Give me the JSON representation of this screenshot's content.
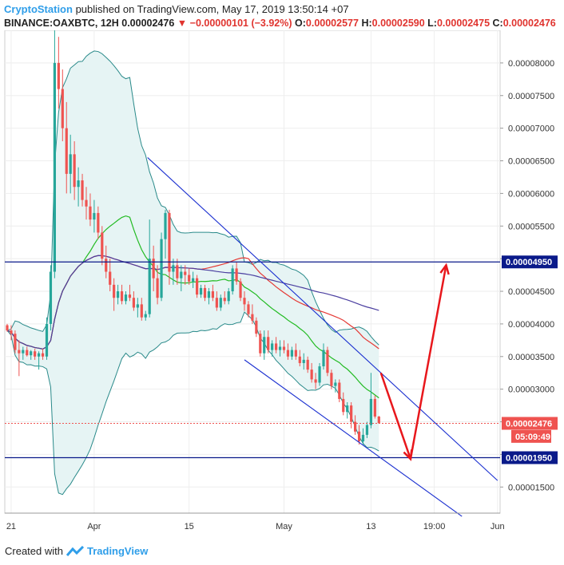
{
  "header": {
    "author": "CryptoStation",
    "published": "published on TradingView.com, May 17, 2019 13:50:14 +07",
    "symbol": "BINANCE:OAXBTC, 12H",
    "last": "0.00002476",
    "change": "−0.00000101 (−3.92%)",
    "o_label": "O:",
    "o_value": "0.00002577",
    "h_label": "H:",
    "h_value": "0.00002590",
    "l_label": "L:",
    "l_value": "0.00002475",
    "c_label": "C:",
    "c_value": "0.00002476"
  },
  "footer": {
    "created_with": "Created with",
    "brand": "TradingView"
  },
  "colors": {
    "up": "#26a69a",
    "down": "#ef5350",
    "bb": "#2a8a8a",
    "bb_fill": "#e6f4f4",
    "ma_green": "#22bb22",
    "ma_red": "#e53935",
    "ma_purple": "#4b3fa0",
    "channel": "#1a2fd0",
    "arrow": "#e8171c",
    "level": "#0a1a8a"
  },
  "chart_data": {
    "type": "candlestick",
    "price_axis": {
      "min": 1.1e-05,
      "max": 8.5e-05,
      "ticks": [
        "0.00008000",
        "0.00007500",
        "0.00007000",
        "0.00006500",
        "0.00006000",
        "0.00005500",
        "0.00005000",
        "0.00004500",
        "0.00004000",
        "0.00003500",
        "0.00003000",
        "0.00002500",
        "0.00002000",
        "0.00001500"
      ],
      "tick_values": [
        8e-05,
        7.5e-05,
        7e-05,
        6.5e-05,
        6e-05,
        5.5e-05,
        5e-05,
        4.5e-05,
        4e-05,
        3.5e-05,
        3e-05,
        2.5e-05,
        2e-05,
        1.5e-05
      ]
    },
    "time_axis": {
      "labels": [
        "21",
        "Apr",
        "15",
        "May",
        "13",
        "19:00",
        "Jun"
      ],
      "label_bars": [
        1,
        22,
        46,
        70,
        92,
        108,
        124
      ]
    },
    "price_labels": [
      {
        "text": "0.00004950",
        "value": 4.95e-05,
        "style": "level"
      },
      {
        "text": "0.00002476",
        "value": 2.476e-05,
        "style": "last"
      },
      {
        "text": "05:09:49",
        "value": 2.276e-05,
        "style": "timer"
      },
      {
        "text": "0.00001950",
        "value": 1.95e-05,
        "style": "level"
      }
    ],
    "horizontal_levels": [
      4.95e-05,
      1.95e-05
    ],
    "last_price": 2.476e-05,
    "trend_channel": {
      "upper": [
        [
          35.5,
          6.55e-05
        ],
        [
          124,
          1.6e-05
        ]
      ],
      "lower": [
        [
          60,
          3.45e-05
        ],
        [
          115,
          1.05e-05
        ]
      ]
    },
    "arrows": [
      {
        "from": [
          94.5,
          3.25e-05
        ],
        "to": [
          102,
          1.93e-05
        ]
      },
      {
        "from": [
          102,
          1.93e-05
        ],
        "to": [
          111,
          4.9e-05
        ]
      }
    ],
    "candles": [
      [
        3.98,
        4.0,
        3.88,
        3.9
      ],
      [
        3.9,
        3.98,
        3.75,
        3.85
      ],
      [
        3.85,
        3.9,
        3.55,
        3.6
      ],
      [
        3.6,
        3.75,
        3.2,
        3.55
      ],
      [
        3.55,
        3.65,
        3.45,
        3.6
      ],
      [
        3.6,
        3.65,
        3.5,
        3.52
      ],
      [
        3.52,
        3.6,
        3.45,
        3.58
      ],
      [
        3.58,
        3.62,
        3.45,
        3.5
      ],
      [
        3.5,
        3.58,
        3.3,
        3.55
      ],
      [
        3.55,
        3.62,
        3.45,
        3.5
      ],
      [
        3.5,
        4.1,
        3.45,
        4.0
      ],
      [
        4.0,
        4.9,
        3.9,
        4.8
      ],
      [
        4.8,
        8.5,
        4.7,
        8.0
      ],
      [
        8.0,
        8.4,
        7.3,
        7.6
      ],
      [
        7.6,
        7.9,
        6.8,
        7.0
      ],
      [
        7.0,
        7.4,
        6.0,
        6.3
      ],
      [
        6.3,
        6.9,
        6.0,
        6.6
      ],
      [
        6.6,
        6.8,
        5.9,
        6.1
      ],
      [
        6.1,
        6.4,
        5.8,
        6.2
      ],
      [
        6.2,
        6.3,
        5.8,
        5.9
      ],
      [
        5.9,
        6.1,
        5.6,
        5.8
      ],
      [
        5.8,
        6.0,
        5.5,
        5.6
      ],
      [
        5.6,
        5.9,
        5.4,
        5.7
      ],
      [
        5.7,
        5.8,
        5.3,
        5.4
      ],
      [
        5.4,
        5.5,
        4.9,
        5.0
      ],
      [
        5.0,
        5.2,
        4.7,
        4.8
      ],
      [
        4.8,
        5.0,
        4.5,
        4.6
      ],
      [
        4.6,
        4.7,
        4.2,
        4.4
      ],
      [
        4.4,
        4.6,
        4.3,
        4.5
      ],
      [
        4.5,
        4.6,
        4.3,
        4.35
      ],
      [
        4.35,
        4.5,
        4.3,
        4.45
      ],
      [
        4.45,
        4.6,
        4.35,
        4.4
      ],
      [
        4.4,
        4.5,
        4.2,
        4.25
      ],
      [
        4.25,
        4.4,
        4.1,
        4.3
      ],
      [
        4.3,
        4.4,
        4.05,
        4.1
      ],
      [
        4.1,
        4.2,
        4.05,
        4.15
      ],
      [
        4.15,
        5.6,
        4.1,
        5.0
      ],
      [
        5.0,
        5.2,
        4.5,
        4.7
      ],
      [
        4.7,
        4.9,
        4.3,
        4.4
      ],
      [
        4.4,
        5.4,
        4.35,
        5.3
      ],
      [
        5.3,
        5.75,
        5.0,
        5.7
      ],
      [
        5.7,
        5.75,
        4.6,
        4.8
      ],
      [
        4.8,
        5.0,
        4.6,
        4.9
      ],
      [
        4.9,
        5.0,
        4.6,
        4.7
      ],
      [
        4.7,
        4.9,
        4.5,
        4.8
      ],
      [
        4.8,
        4.9,
        4.6,
        4.75
      ],
      [
        4.75,
        4.85,
        4.6,
        4.65
      ],
      [
        4.65,
        4.8,
        4.55,
        4.7
      ],
      [
        4.7,
        4.75,
        4.4,
        4.45
      ],
      [
        4.45,
        4.6,
        4.4,
        4.55
      ],
      [
        4.55,
        4.6,
        4.35,
        4.4
      ],
      [
        4.4,
        4.55,
        4.3,
        4.5
      ],
      [
        4.5,
        4.6,
        4.35,
        4.4
      ],
      [
        4.4,
        4.5,
        4.2,
        4.25
      ],
      [
        4.25,
        4.45,
        4.2,
        4.4
      ],
      [
        4.4,
        4.5,
        4.3,
        4.35
      ],
      [
        4.35,
        4.55,
        4.3,
        4.5
      ],
      [
        4.5,
        4.9,
        4.45,
        4.85
      ],
      [
        4.85,
        4.95,
        4.6,
        4.65
      ],
      [
        4.65,
        4.7,
        4.35,
        4.4
      ],
      [
        4.4,
        4.5,
        4.2,
        4.3
      ],
      [
        4.3,
        4.35,
        4.1,
        4.15
      ],
      [
        4.15,
        4.3,
        4.0,
        4.05
      ],
      [
        4.05,
        4.1,
        3.8,
        3.85
      ],
      [
        3.85,
        3.9,
        3.5,
        3.55
      ],
      [
        3.55,
        3.9,
        3.45,
        3.8
      ],
      [
        3.8,
        3.9,
        3.55,
        3.6
      ],
      [
        3.6,
        3.75,
        3.5,
        3.7
      ],
      [
        3.7,
        3.8,
        3.55,
        3.6
      ],
      [
        3.6,
        3.75,
        3.5,
        3.65
      ],
      [
        3.65,
        3.75,
        3.55,
        3.6
      ],
      [
        3.6,
        3.7,
        3.45,
        3.5
      ],
      [
        3.5,
        3.65,
        3.45,
        3.6
      ],
      [
        3.6,
        3.7,
        3.45,
        3.5
      ],
      [
        3.5,
        3.6,
        3.35,
        3.4
      ],
      [
        3.4,
        3.55,
        3.3,
        3.45
      ],
      [
        3.45,
        3.5,
        3.25,
        3.3
      ],
      [
        3.3,
        3.4,
        3.1,
        3.15
      ],
      [
        3.15,
        3.25,
        3.0,
        3.1
      ],
      [
        3.1,
        3.4,
        3.05,
        3.35
      ],
      [
        3.35,
        3.7,
        3.3,
        3.6
      ],
      [
        3.6,
        3.65,
        3.2,
        3.25
      ],
      [
        3.25,
        3.3,
        3.0,
        3.05
      ],
      [
        3.05,
        3.15,
        2.95,
        3.1
      ],
      [
        3.1,
        3.15,
        2.8,
        2.85
      ],
      [
        2.85,
        2.95,
        2.6,
        2.65
      ],
      [
        2.65,
        2.8,
        2.55,
        2.75
      ],
      [
        2.75,
        2.8,
        2.4,
        2.5
      ],
      [
        2.5,
        2.6,
        2.3,
        2.35
      ],
      [
        2.35,
        2.45,
        2.15,
        2.2
      ],
      [
        2.2,
        2.4,
        2.15,
        2.3
      ],
      [
        2.3,
        2.5,
        2.25,
        2.45
      ],
      [
        2.45,
        3.25,
        2.4,
        2.85
      ],
      [
        2.85,
        2.9,
        2.55,
        2.58
      ],
      [
        2.58,
        2.59,
        2.47,
        2.48
      ]
    ]
  }
}
